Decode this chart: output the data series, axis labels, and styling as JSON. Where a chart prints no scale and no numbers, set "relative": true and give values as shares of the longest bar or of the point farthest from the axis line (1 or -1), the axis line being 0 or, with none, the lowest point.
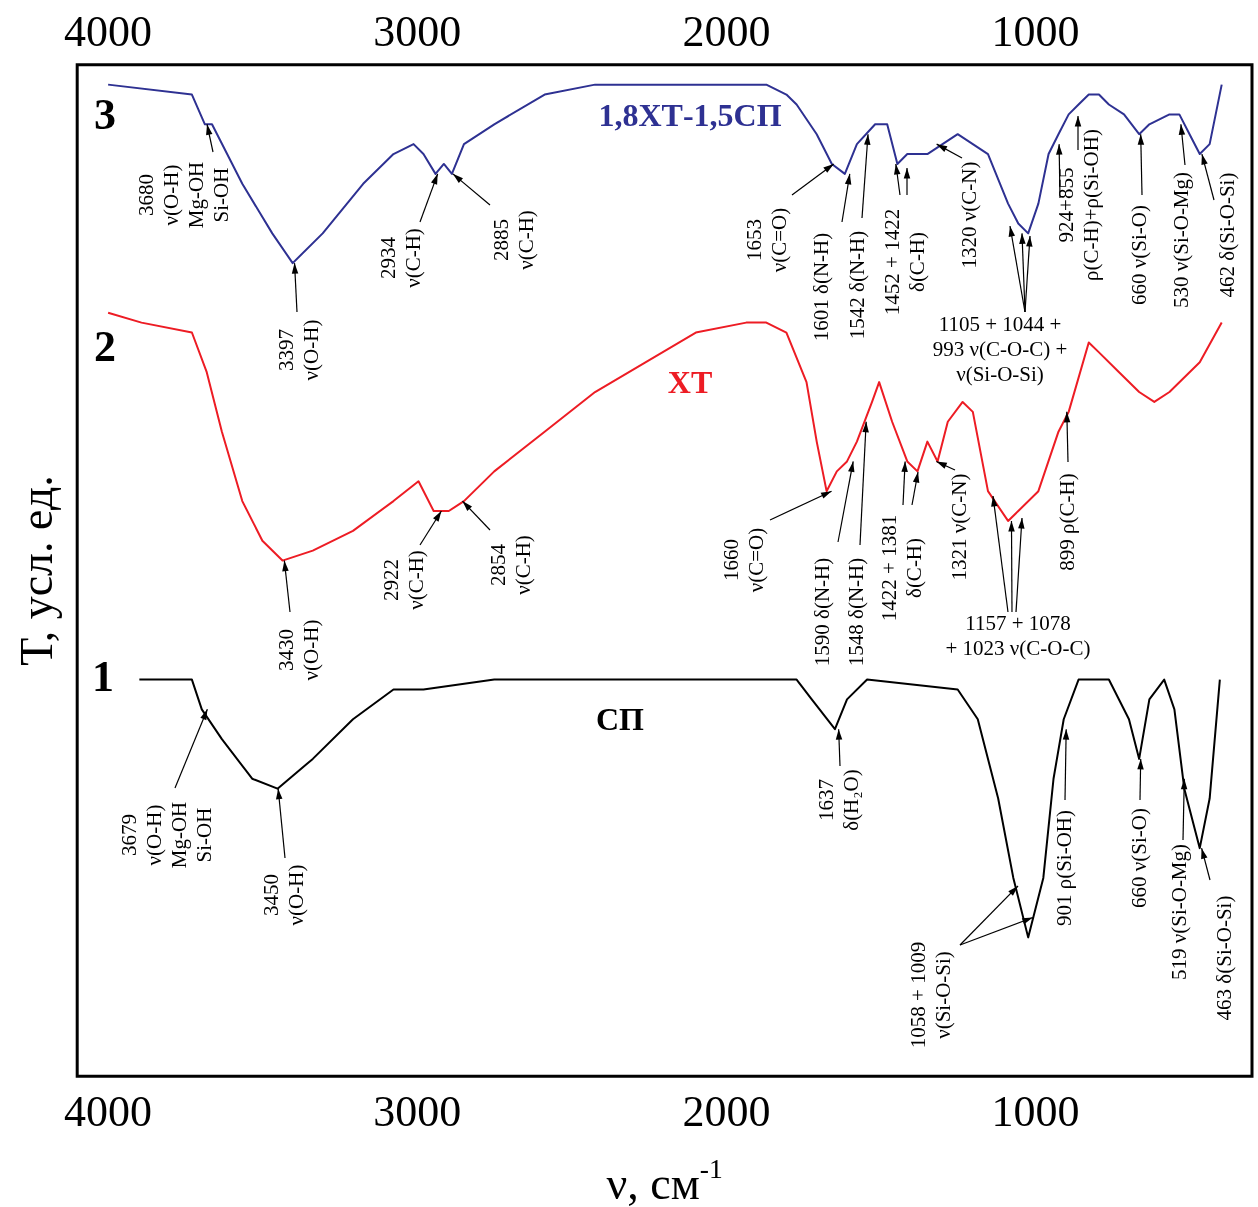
{
  "chart_data": {
    "type": "line",
    "relative": true,
    "xlabel": "ν, см$^{-1}$",
    "ylabel": "Т, усл. ед.",
    "xlim": [
      4100,
      300
    ],
    "xticks": [
      4000,
      3000,
      2000,
      1000
    ],
    "x2lim": [
      4100,
      300
    ],
    "x2ticks": [
      4000,
      3000,
      2000,
      1000
    ],
    "grid": false,
    "legend": false,
    "series": [
      {
        "name": "СП",
        "color": "#000000",
        "x": [
          3899,
          3729,
          3697,
          3632,
          3534,
          3452,
          3338,
          3208,
          3077,
          2980,
          2751,
          2425,
          2099,
          1773,
          1724,
          1649,
          1610,
          1545,
          1252,
          1187,
          1121,
          1072,
          1024,
          975,
          942,
          909,
          861,
          763,
          698,
          665,
          632,
          584,
          551,
          519,
          469,
          437,
          404
        ],
        "values": [
          0.4,
          0.4,
          0.37,
          0.34,
          0.3,
          0.29,
          0.32,
          0.36,
          0.39,
          0.39,
          0.4,
          0.4,
          0.4,
          0.4,
          0.38,
          0.35,
          0.38,
          0.4,
          0.39,
          0.36,
          0.28,
          0.2,
          0.14,
          0.2,
          0.3,
          0.36,
          0.4,
          0.4,
          0.36,
          0.32,
          0.38,
          0.4,
          0.37,
          0.29,
          0.23,
          0.28,
          0.4
        ]
      },
      {
        "name": "ХТ",
        "color": "#ed1c24",
        "x": [
          4000,
          3892,
          3729,
          3681,
          3632,
          3566,
          3501,
          3436,
          3338,
          3208,
          3077,
          2996,
          2947,
          2898,
          2849,
          2751,
          2588,
          2425,
          2262,
          2099,
          1936,
          1871,
          1806,
          1741,
          1708,
          1676,
          1643,
          1610,
          1578,
          1529,
          1506,
          1464,
          1415,
          1382,
          1350,
          1317,
          1284,
          1236,
          1203,
          1154,
          1089,
          1056,
          991,
          926,
          893,
          828,
          795,
          730,
          665,
          616,
          567,
          469,
          398
        ],
        "values": [
          0.77,
          0.76,
          0.75,
          0.71,
          0.65,
          0.58,
          0.54,
          0.52,
          0.53,
          0.55,
          0.58,
          0.6,
          0.57,
          0.57,
          0.58,
          0.61,
          0.65,
          0.69,
          0.72,
          0.75,
          0.76,
          0.76,
          0.75,
          0.7,
          0.64,
          0.59,
          0.61,
          0.62,
          0.64,
          0.68,
          0.7,
          0.66,
          0.62,
          0.61,
          0.64,
          0.62,
          0.66,
          0.68,
          0.67,
          0.59,
          0.56,
          0.57,
          0.59,
          0.65,
          0.67,
          0.74,
          0.73,
          0.71,
          0.69,
          0.68,
          0.69,
          0.72,
          0.76
        ]
      },
      {
        "name": "1,8ХТ-1,5СП",
        "color": "#2e3192",
        "x": [
          4000,
          3729,
          3687,
          3664,
          3566,
          3469,
          3403,
          3306,
          3175,
          3077,
          3012,
          2980,
          2941,
          2914,
          2888,
          2849,
          2751,
          2588,
          2425,
          2099,
          1871,
          1806,
          1773,
          1708,
          1659,
          1617,
          1578,
          1519,
          1480,
          1447,
          1415,
          1350,
          1301,
          1252,
          1203,
          1154,
          1089,
          1056,
          1024,
          991,
          958,
          926,
          893,
          861,
          828,
          795,
          763,
          714,
          665,
          632,
          567,
          535,
          502,
          469,
          437,
          398
        ],
        "values": [
          1.0,
          0.99,
          0.96,
          0.96,
          0.9,
          0.85,
          0.82,
          0.85,
          0.9,
          0.93,
          0.94,
          0.93,
          0.91,
          0.92,
          0.91,
          0.94,
          0.96,
          0.99,
          1.0,
          1.0,
          1.0,
          0.99,
          0.98,
          0.95,
          0.92,
          0.91,
          0.94,
          0.96,
          0.96,
          0.92,
          0.93,
          0.93,
          0.94,
          0.95,
          0.94,
          0.93,
          0.88,
          0.86,
          0.85,
          0.88,
          0.93,
          0.95,
          0.97,
          0.98,
          0.99,
          0.99,
          0.98,
          0.97,
          0.95,
          0.96,
          0.97,
          0.97,
          0.95,
          0.93,
          0.94,
          1.0
        ]
      }
    ],
    "annotations": [
      {
        "text": "3680\nν(O-H)\nMg-OH\nSi-OH",
        "x": 3680,
        "y": 0.96
      },
      {
        "text": "3397\nν(O-H)",
        "x": 3397,
        "y": 0.82
      },
      {
        "text": "2934\nν(C-H)",
        "x": 2934,
        "y": 0.91
      },
      {
        "text": "2885\nν(C-H)",
        "x": 2885,
        "y": 0.91
      },
      {
        "text": "1653\nν(C=O)",
        "x": 1653,
        "y": 0.92
      },
      {
        "text": "1601 δ(N-H)",
        "x": 1601,
        "y": 0.91
      },
      {
        "text": "1542 δ(N-H)",
        "x": 1542,
        "y": 0.95
      },
      {
        "text": "1452 + 1422\nδ(C-H)",
        "x": 1452,
        "y": 0.92
      },
      {
        "text": "1320 ν(C-N)",
        "x": 1320,
        "y": 0.94
      },
      {
        "text": "1105 + 1044 +\n993 ν(C-O-C) +\nν(Si-O-Si)",
        "x": 1044,
        "y": 0.85
      },
      {
        "text": "924+855\nρ(C-H)+ρ(Si-OH)",
        "x": 924,
        "y": 0.94
      },
      {
        "text": "660 ν(Si-O)",
        "x": 660,
        "y": 0.95
      },
      {
        "text": "530 ν(Si-O-Mg)",
        "x": 530,
        "y": 0.96
      },
      {
        "text": "462 δ(Si-O-Si)",
        "x": 462,
        "y": 0.93
      },
      {
        "text": "3430\nν(O-H)",
        "x": 3430,
        "y": 0.52
      },
      {
        "text": "2922\nν(C-H)",
        "x": 2922,
        "y": 0.57
      },
      {
        "text": "2854\nν(C-H)",
        "x": 2854,
        "y": 0.58
      },
      {
        "text": "1660\nν(C=O)",
        "x": 1660,
        "y": 0.59
      },
      {
        "text": "1590 δ(N-H)",
        "x": 1590,
        "y": 0.62
      },
      {
        "text": "1548 δ(N-H)",
        "x": 1548,
        "y": 0.66
      },
      {
        "text": "1422 + 1381\nδ(C-H)",
        "x": 1422,
        "y": 0.62
      },
      {
        "text": "1321 ν(C-N)",
        "x": 1321,
        "y": 0.62
      },
      {
        "text": "1157 + 1078\n+ 1023 ν(C-O-C)",
        "x": 1078,
        "y": 0.56
      },
      {
        "text": "899 ρ(C-H)",
        "x": 899,
        "y": 0.67
      },
      {
        "text": "3679\nν(O-H)\nMg-OH\nSi-OH",
        "x": 3679,
        "y": 0.37
      },
      {
        "text": "3450\nν(O-H)",
        "x": 3450,
        "y": 0.29
      },
      {
        "text": "1637\nδ(H₂O)",
        "x": 1637,
        "y": 0.35
      },
      {
        "text": "1058 + 1009\nν(Si-O-Si)",
        "x": 1009,
        "y": 0.16
      },
      {
        "text": "901 ρ(Si-OH)",
        "x": 901,
        "y": 0.35
      },
      {
        "text": "660 ν(Si-O)",
        "x": 660,
        "y": 0.32
      },
      {
        "text": "519 ν(Si-O-Mg)",
        "x": 519,
        "y": 0.3
      },
      {
        "text": "463 δ(Si-O-Si)",
        "x": 463,
        "y": 0.23
      },
      "3",
      "2",
      "1"
    ]
  }
}
